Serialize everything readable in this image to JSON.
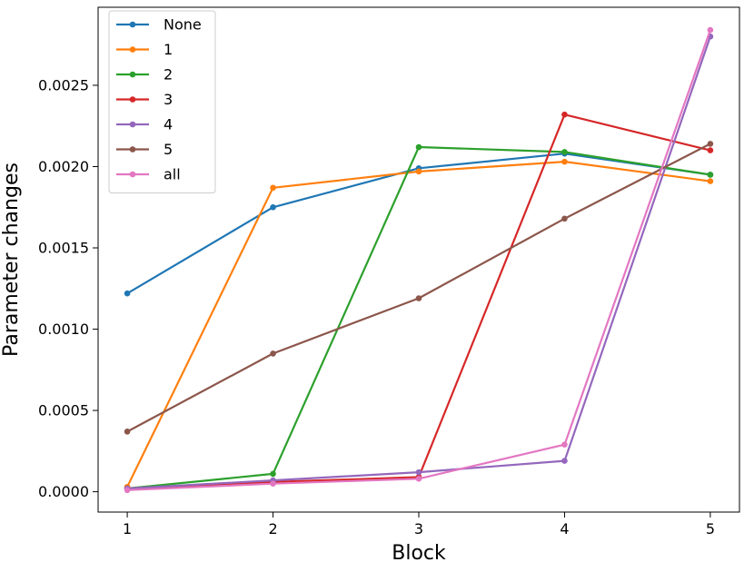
{
  "chart_data": {
    "type": "line",
    "title": "",
    "xlabel": "Block",
    "ylabel": "Parameter changes",
    "x": [
      1,
      2,
      3,
      4,
      5
    ],
    "xlim": [
      0.8,
      5.2
    ],
    "ylim": [
      -0.000125,
      0.00298
    ],
    "yticks": [
      0.0,
      0.0005,
      0.001,
      0.0015,
      0.002,
      0.0025
    ],
    "ytick_labels": [
      "0.0000",
      "0.0005",
      "0.0010",
      "0.0015",
      "0.0020",
      "0.0025"
    ],
    "xtick_labels": [
      "1",
      "2",
      "3",
      "4",
      "5"
    ],
    "grid": false,
    "legend_position": "top-left",
    "series": [
      {
        "name": "None",
        "color": "#1f77b4",
        "values": [
          0.00122,
          0.00175,
          0.00199,
          0.00208,
          0.00195
        ]
      },
      {
        "name": "1",
        "color": "#ff7f0e",
        "values": [
          3e-05,
          0.00187,
          0.00197,
          0.00203,
          0.00191
        ]
      },
      {
        "name": "2",
        "color": "#2ca02c",
        "values": [
          2e-05,
          0.00011,
          0.00212,
          0.00209,
          0.00195
        ]
      },
      {
        "name": "3",
        "color": "#d62728",
        "values": [
          2e-05,
          6e-05,
          9e-05,
          0.00232,
          0.0021
        ]
      },
      {
        "name": "4",
        "color": "#9467bd",
        "values": [
          2e-05,
          7e-05,
          0.00012,
          0.00019,
          0.0028
        ]
      },
      {
        "name": "5",
        "color": "#8c564b",
        "values": [
          0.00037,
          0.00085,
          0.00119,
          0.00168,
          0.00214
        ]
      },
      {
        "name": "all",
        "color": "#e377c2",
        "values": [
          1e-05,
          5e-05,
          8e-05,
          0.00029,
          0.00284
        ]
      }
    ]
  }
}
